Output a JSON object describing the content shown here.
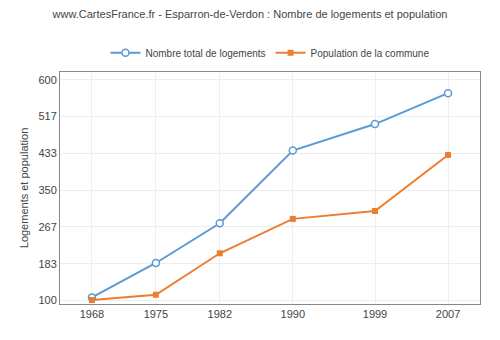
{
  "chart_data": {
    "type": "line",
    "title": "www.CartesFrance.fr - Esparron-de-Verdon : Nombre de logements et population",
    "ylabel": "Logements et population",
    "x": [
      1968,
      1975,
      1982,
      1990,
      1999,
      2007
    ],
    "series": [
      {
        "name": "Nombre total de logements",
        "color": "#5b9bd5",
        "marker": "circle",
        "values": [
          107,
          185,
          275,
          440,
          500,
          570
        ]
      },
      {
        "name": "Population de la commune",
        "color": "#ed7d31",
        "marker": "square",
        "values": [
          101,
          113,
          207,
          285,
          303,
          430
        ]
      }
    ],
    "xlim": [
      1964.5,
      2010.5
    ],
    "xticks": [
      1968,
      1975,
      1982,
      1990,
      1999,
      2007
    ],
    "ylim": [
      92,
      618
    ],
    "yticks": [
      100,
      183,
      267,
      350,
      433,
      517,
      600
    ],
    "grid": true,
    "legend": "upper center"
  }
}
